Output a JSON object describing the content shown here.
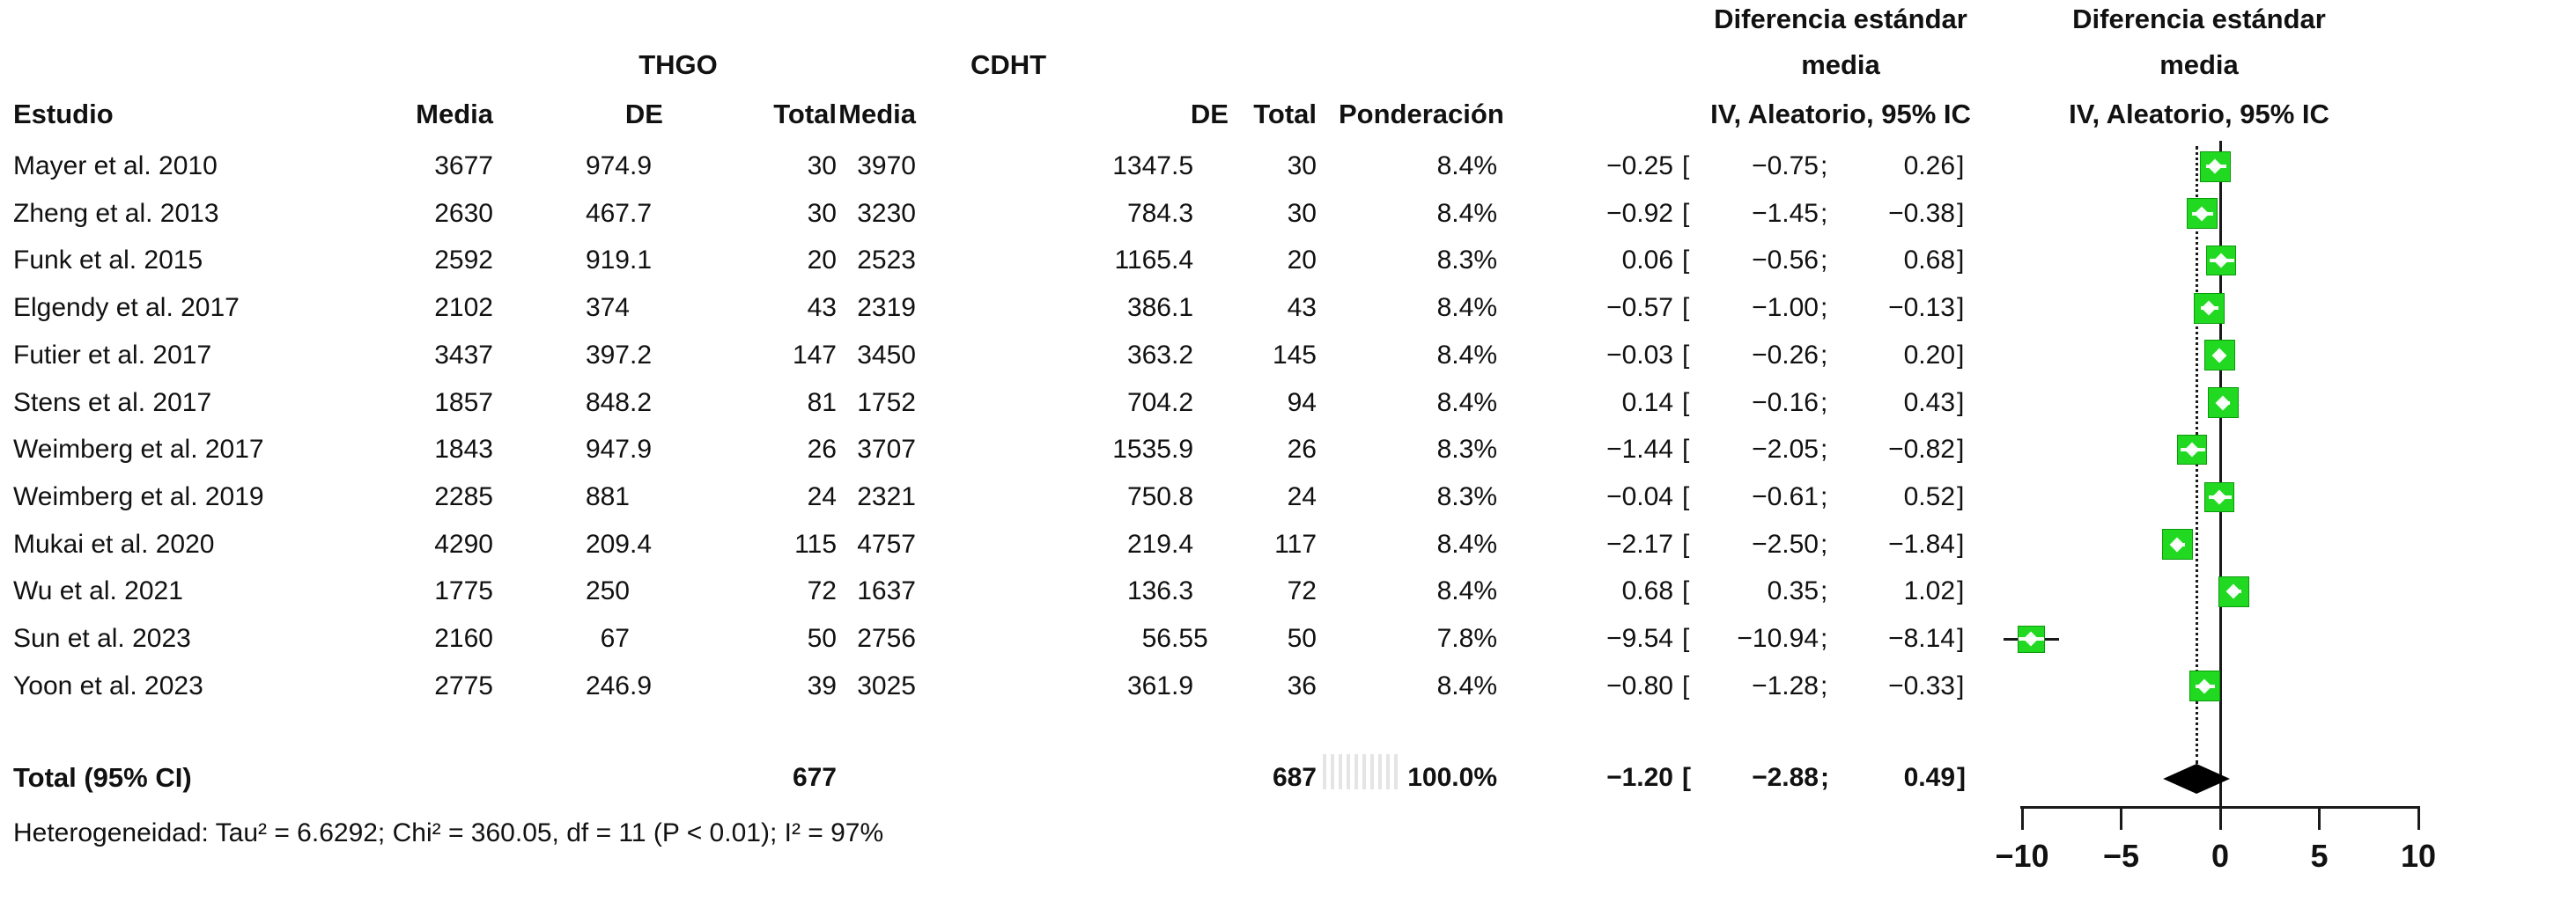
{
  "headers": {
    "study": "Estudio",
    "mean": "Media",
    "sd": "DE",
    "total": "Total",
    "weight": "Ponderación",
    "group1": "THGO",
    "group2": "CDHT",
    "effect_block": {
      "line1": "Diferencia estándar",
      "line2": "media",
      "line3": "IV, Aleatorio, 95% IC"
    },
    "plot_block": {
      "line1": "Diferencia estándar",
      "line2": "media",
      "line3": "IV, Aleatorio, 95% IC"
    }
  },
  "studies": [
    {
      "name": "Mayer et al. 2010",
      "mean1": "3677",
      "sd1": "974.9",
      "n1": "30",
      "mean2": "3970",
      "sd2": "1347.5",
      "n2": "30",
      "weight": "8.4%",
      "est": "−0.25",
      "lo": "−0.75",
      "hi": "0.26"
    },
    {
      "name": "Zheng et al. 2013",
      "mean1": "2630",
      "sd1": "467.7",
      "n1": "30",
      "mean2": "3230",
      "sd2": "784.3",
      "n2": "30",
      "weight": "8.4%",
      "est": "−0.92",
      "lo": "−1.45",
      "hi": "−0.38"
    },
    {
      "name": "Funk et al. 2015",
      "mean1": "2592",
      "sd1": "919.1",
      "n1": "20",
      "mean2": "2523",
      "sd2": "1165.4",
      "n2": "20",
      "weight": "8.3%",
      "est": "0.06",
      "lo": "−0.56",
      "hi": "0.68"
    },
    {
      "name": "Elgendy et al. 2017",
      "mean1": "2102",
      "sd1": "374",
      "n1": "43",
      "mean2": "2319",
      "sd2": "386.1",
      "n2": "43",
      "weight": "8.4%",
      "est": "−0.57",
      "lo": "−1.00",
      "hi": "−0.13"
    },
    {
      "name": "Futier et al. 2017",
      "mean1": "3437",
      "sd1": "397.2",
      "n1": "147",
      "mean2": "3450",
      "sd2": "363.2",
      "n2": "145",
      "weight": "8.4%",
      "est": "−0.03",
      "lo": "−0.26",
      "hi": "0.20"
    },
    {
      "name": "Stens et al. 2017",
      "mean1": "1857",
      "sd1": "848.2",
      "n1": "81",
      "mean2": "1752",
      "sd2": "704.2",
      "n2": "94",
      "weight": "8.4%",
      "est": "0.14",
      "lo": "−0.16",
      "hi": "0.43"
    },
    {
      "name": "Weimberg et al. 2017",
      "mean1": "1843",
      "sd1": "947.9",
      "n1": "26",
      "mean2": "3707",
      "sd2": "1535.9",
      "n2": "26",
      "weight": "8.3%",
      "est": "−1.44",
      "lo": "−2.05",
      "hi": "−0.82"
    },
    {
      "name": "Weimberg et al. 2019",
      "mean1": "2285",
      "sd1": "881",
      "n1": "24",
      "mean2": "2321",
      "sd2": "750.8",
      "n2": "24",
      "weight": "8.3%",
      "est": "−0.04",
      "lo": "−0.61",
      "hi": "0.52"
    },
    {
      "name": "Mukai et al. 2020",
      "mean1": "4290",
      "sd1": "209.4",
      "n1": "115",
      "mean2": "4757",
      "sd2": "219.4",
      "n2": "117",
      "weight": "8.4%",
      "est": "−2.17",
      "lo": "−2.50",
      "hi": "−1.84"
    },
    {
      "name": "Wu et al. 2021",
      "mean1": "1775",
      "sd1": "250",
      "n1": "72",
      "mean2": "1637",
      "sd2": "136.3",
      "n2": "72",
      "weight": "8.4%",
      "est": "0.68",
      "lo": "0.35",
      "hi": "1.02"
    },
    {
      "name": "Sun et al. 2023",
      "mean1": "2160",
      "sd1": "67",
      "n1": "50",
      "mean2": "2756",
      "sd2": "56.55",
      "n2": "50",
      "weight": "7.8%",
      "est": "−9.54",
      "lo": "−10.94",
      "hi": "−8.14"
    },
    {
      "name": "Yoon et al. 2023",
      "mean1": "2775",
      "sd1": "246.9",
      "n1": "39",
      "mean2": "3025",
      "sd2": "361.9",
      "n2": "36",
      "weight": "8.4%",
      "est": "−0.80",
      "lo": "−1.28",
      "hi": "−0.33"
    }
  ],
  "total_row": {
    "label": "Total (95% CI)",
    "n1": "677",
    "n2": "687",
    "weight": "100.0%",
    "est": "−1.20",
    "lo": "−2.88",
    "hi": "0.49"
  },
  "heterogeneity": "Heterogeneidad: Tau² = 6.6292; Chi² = 360.05, df = 11 (P < 0.01); I² = 97%",
  "axis": {
    "tick_labels": [
      "−10",
      "−5",
      "0",
      "5",
      "10"
    ]
  },
  "colors": {
    "square": "#22d922",
    "square_border": "#0a9a0a",
    "line": "#1a1a1a",
    "diamond": "#000000"
  },
  "chart_data": {
    "type": "scatter",
    "subtype": "forest-plot",
    "title": "Diferencia estándar media, IV, Aleatorio, 95% IC (THGO vs CDHT)",
    "x_axis": {
      "ticks": [
        -10,
        -5,
        0,
        5,
        10
      ],
      "range": [
        -10,
        10
      ]
    },
    "zero_line": 0,
    "pooled_dotted_line": -1.2,
    "studies": [
      {
        "name": "Mayer et al. 2010",
        "thgo": {
          "mean": 3677,
          "sd": 974.9,
          "n": 30
        },
        "cdht": {
          "mean": 3970,
          "sd": 1347.5,
          "n": 30
        },
        "weight_pct": 8.4,
        "smd": -0.25,
        "ci": [
          -0.75,
          0.26
        ]
      },
      {
        "name": "Zheng et al. 2013",
        "thgo": {
          "mean": 2630,
          "sd": 467.7,
          "n": 30
        },
        "cdht": {
          "mean": 3230,
          "sd": 784.3,
          "n": 30
        },
        "weight_pct": 8.4,
        "smd": -0.92,
        "ci": [
          -1.45,
          -0.38
        ]
      },
      {
        "name": "Funk et al. 2015",
        "thgo": {
          "mean": 2592,
          "sd": 919.1,
          "n": 20
        },
        "cdht": {
          "mean": 2523,
          "sd": 1165.4,
          "n": 20
        },
        "weight_pct": 8.3,
        "smd": 0.06,
        "ci": [
          -0.56,
          0.68
        ]
      },
      {
        "name": "Elgendy et al. 2017",
        "thgo": {
          "mean": 2102,
          "sd": 374,
          "n": 43
        },
        "cdht": {
          "mean": 2319,
          "sd": 386.1,
          "n": 43
        },
        "weight_pct": 8.4,
        "smd": -0.57,
        "ci": [
          -1.0,
          -0.13
        ]
      },
      {
        "name": "Futier et al. 2017",
        "thgo": {
          "mean": 3437,
          "sd": 397.2,
          "n": 147
        },
        "cdht": {
          "mean": 3450,
          "sd": 363.2,
          "n": 145
        },
        "weight_pct": 8.4,
        "smd": -0.03,
        "ci": [
          -0.26,
          0.2
        ]
      },
      {
        "name": "Stens et al. 2017",
        "thgo": {
          "mean": 1857,
          "sd": 848.2,
          "n": 81
        },
        "cdht": {
          "mean": 1752,
          "sd": 704.2,
          "n": 94
        },
        "weight_pct": 8.4,
        "smd": 0.14,
        "ci": [
          -0.16,
          0.43
        ]
      },
      {
        "name": "Weimberg et al. 2017",
        "thgo": {
          "mean": 1843,
          "sd": 947.9,
          "n": 26
        },
        "cdht": {
          "mean": 3707,
          "sd": 1535.9,
          "n": 26
        },
        "weight_pct": 8.3,
        "smd": -1.44,
        "ci": [
          -2.05,
          -0.82
        ]
      },
      {
        "name": "Weimberg et al. 2019",
        "thgo": {
          "mean": 2285,
          "sd": 881,
          "n": 24
        },
        "cdht": {
          "mean": 2321,
          "sd": 750.8,
          "n": 24
        },
        "weight_pct": 8.3,
        "smd": -0.04,
        "ci": [
          -0.61,
          0.52
        ]
      },
      {
        "name": "Mukai et al. 2020",
        "thgo": {
          "mean": 4290,
          "sd": 209.4,
          "n": 115
        },
        "cdht": {
          "mean": 4757,
          "sd": 219.4,
          "n": 117
        },
        "weight_pct": 8.4,
        "smd": -2.17,
        "ci": [
          -2.5,
          -1.84
        ]
      },
      {
        "name": "Wu et al. 2021",
        "thgo": {
          "mean": 1775,
          "sd": 250,
          "n": 72
        },
        "cdht": {
          "mean": 1637,
          "sd": 136.3,
          "n": 72
        },
        "weight_pct": 8.4,
        "smd": 0.68,
        "ci": [
          0.35,
          1.02
        ]
      },
      {
        "name": "Sun et al. 2023",
        "thgo": {
          "mean": 2160,
          "sd": 67,
          "n": 50
        },
        "cdht": {
          "mean": 2756,
          "sd": 56.55,
          "n": 50
        },
        "weight_pct": 7.8,
        "smd": -9.54,
        "ci": [
          -10.94,
          -8.14
        ]
      },
      {
        "name": "Yoon et al. 2023",
        "thgo": {
          "mean": 2775,
          "sd": 246.9,
          "n": 39
        },
        "cdht": {
          "mean": 3025,
          "sd": 361.9,
          "n": 36
        },
        "weight_pct": 8.4,
        "smd": -0.8,
        "ci": [
          -1.28,
          -0.33
        ]
      }
    ],
    "total": {
      "n_thgo": 677,
      "n_cdht": 687,
      "weight_pct": 100.0,
      "smd": -1.2,
      "ci": [
        -2.88,
        0.49
      ]
    },
    "heterogeneity": {
      "tau2": 6.6292,
      "chi2": 360.05,
      "df": 11,
      "p": "P < 0.01",
      "i2_pct": 97
    }
  }
}
